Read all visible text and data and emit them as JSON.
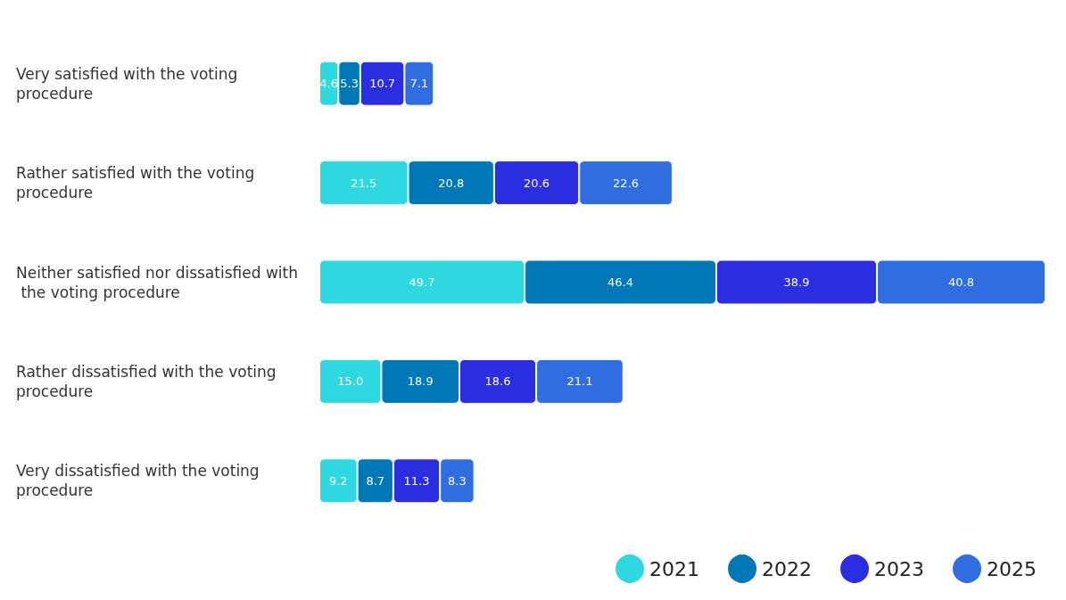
{
  "chart_data": {
    "type": "bar",
    "orientation": "horizontal",
    "stacked": true,
    "legend": "bottom right",
    "categories": [
      "Very satisfied with the voting procedure",
      "Rather satisfied with the voting procedure",
      "Neither satisfied nor dissatisfied with the voting procedure",
      "Rather dissatisfied with the voting procedure",
      "Very dissatisfied with the voting procedure"
    ],
    "series": [
      {
        "name": "2021",
        "color": "#2ed8e0",
        "values": [
          4.6,
          21.5,
          49.7,
          15.0,
          9.2
        ],
        "value_labels": [
          "4.6",
          "21.5",
          "49.7",
          "15.0",
          "9.2"
        ]
      },
      {
        "name": "2022",
        "color": "#0077b6",
        "values": [
          5.3,
          20.8,
          46.4,
          18.9,
          8.7
        ],
        "value_labels": [
          "5.3",
          "20.8",
          "46.4",
          "18.9",
          "8.7"
        ]
      },
      {
        "name": "2023",
        "color": "#2b2de0",
        "values": [
          10.7,
          20.6,
          38.9,
          18.6,
          11.3
        ],
        "value_labels": [
          "10.7",
          "20.6",
          "38.9",
          "18.6",
          "11.3"
        ]
      },
      {
        "name": "2025",
        "color": "#2f6de0",
        "values": [
          7.1,
          22.6,
          40.8,
          21.1,
          8.3
        ],
        "value_labels": [
          "7.1",
          "22.6",
          "40.8",
          "21.1",
          "8.3"
        ]
      }
    ]
  }
}
